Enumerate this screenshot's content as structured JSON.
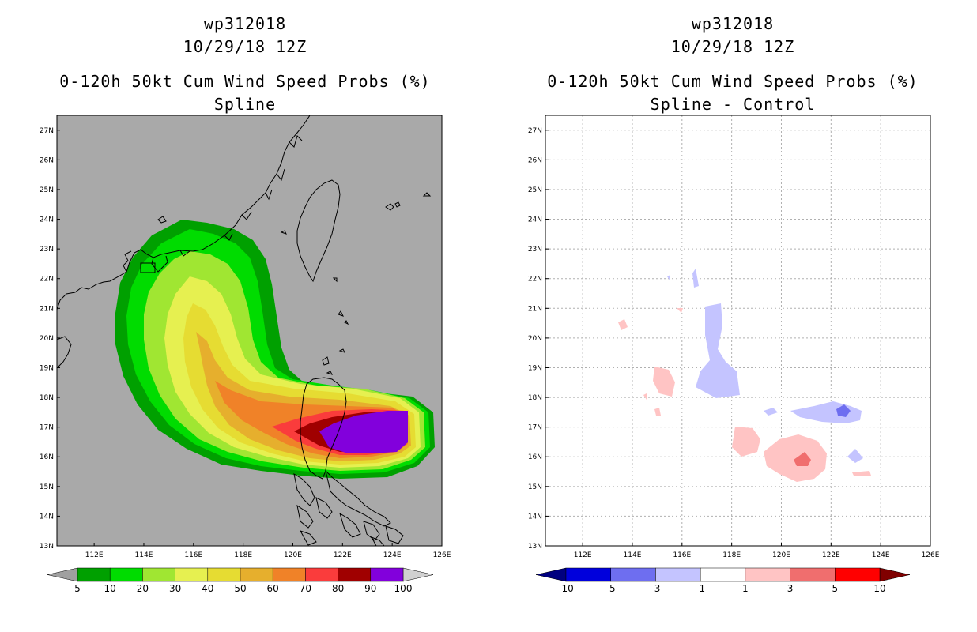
{
  "left_panel": {
    "storm_id": "wp312018",
    "datetime": "10/29/18 12Z",
    "product": "0-120h 50kt Cum Wind Speed Probs (%)",
    "subtitle": "Spline"
  },
  "right_panel": {
    "storm_id": "wp312018",
    "datetime": "10/29/18 12Z",
    "product": "0-120h 50kt Cum Wind Speed Probs (%)",
    "subtitle": "Spline - Control"
  },
  "map_axes": {
    "lat_labels": [
      "27N",
      "26N",
      "25N",
      "24N",
      "23N",
      "22N",
      "21N",
      "20N",
      "19N",
      "18N",
      "17N",
      "16N",
      "15N",
      "14N",
      "13N"
    ],
    "lon_labels": [
      "112E",
      "114E",
      "116E",
      "118E",
      "120E",
      "122E",
      "124E",
      "126E"
    ],
    "lat_range": [
      13,
      27.5
    ],
    "lon_range": [
      110.5,
      126
    ]
  },
  "colorbar_left": {
    "labels": [
      "5",
      "10",
      "20",
      "30",
      "40",
      "50",
      "60",
      "70",
      "80",
      "90",
      "100"
    ],
    "colors": [
      "#00a000",
      "#00dc00",
      "#a0e632",
      "#e6f050",
      "#e6dc32",
      "#e6af2d",
      "#f08228",
      "#fa3c3c",
      "#a00000",
      "#8200dc"
    ],
    "underflow": "#a0a0a0",
    "overflow": "#d0d0d0"
  },
  "colorbar_right": {
    "labels": [
      "-10",
      "-5",
      "-3",
      "-1",
      "1",
      "3",
      "5",
      "10"
    ],
    "colors": [
      "#0000dc",
      "#6e6ef0",
      "#c4c4ff",
      "#ffffff",
      "#ffc4c4",
      "#f06e6e",
      "#ff0000"
    ],
    "underflow": "#000080",
    "overflow": "#800000"
  },
  "colors": {
    "map_background_left": "#a9a9a9",
    "map_background_right": "#ffffff"
  }
}
